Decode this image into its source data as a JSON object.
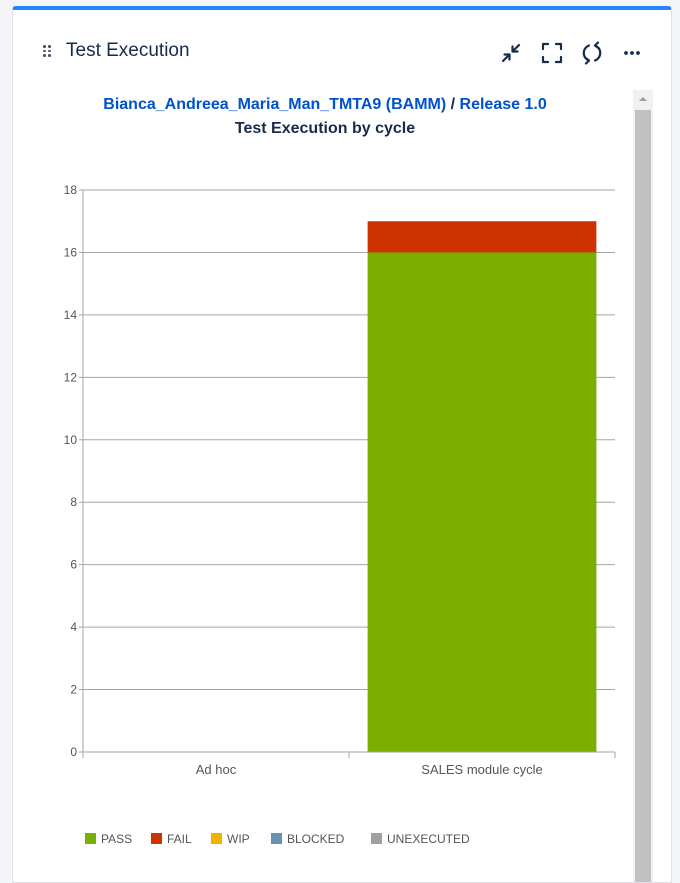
{
  "gadget": {
    "title": "Test Execution",
    "project_link": "Bianca_Andreea_Maria_Man_TMTA9 (BAMM)",
    "separator": "/",
    "release_link": "Release 1.0",
    "chart_title": "Test Execution by cycle"
  },
  "header_icons": [
    "minimize-icon",
    "fullscreen-icon",
    "refresh-icon",
    "more-icon"
  ],
  "chart_data": {
    "type": "bar",
    "stacked": true,
    "title": "Test Execution by cycle",
    "categories": [
      "Ad hoc",
      "SALES module cycle"
    ],
    "series": [
      {
        "name": "PASS",
        "color": "#7aaf00",
        "values": [
          0,
          16
        ]
      },
      {
        "name": "FAIL",
        "color": "#cc3300",
        "values": [
          0,
          1
        ]
      },
      {
        "name": "WIP",
        "color": "#f2b200",
        "values": [
          0,
          0
        ]
      },
      {
        "name": "BLOCKED",
        "color": "#6693b0",
        "values": [
          0,
          0
        ]
      },
      {
        "name": "UNEXECUTED",
        "color": "#a0a0a0",
        "values": [
          0,
          0
        ]
      }
    ],
    "ylim": [
      0,
      18
    ],
    "yticks": [
      "0",
      "2",
      "4",
      "6",
      "8",
      "10",
      "12",
      "14",
      "16",
      "18"
    ],
    "grid": true,
    "legend_position": "bottom"
  }
}
